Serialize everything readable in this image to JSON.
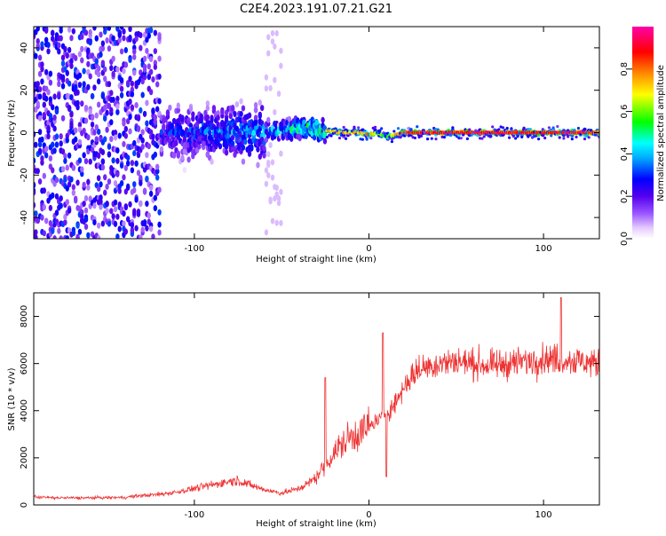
{
  "title": "C2E4.2023.191.07.21.G21",
  "chart_data": [
    {
      "type": "heatmap",
      "xlabel": "Height of straight line (km)",
      "ylabel": "Frequency (Hz)",
      "xlim": [
        -192,
        132
      ],
      "ylim": [
        -50,
        50
      ],
      "xticks": [
        -100,
        0,
        100
      ],
      "yticks": [
        -40,
        -20,
        0,
        20,
        40
      ],
      "grid": false,
      "colorbar": {
        "label": "Normalized spectral amplitude",
        "range": [
          0,
          1
        ],
        "ticks": [
          0.0,
          0.2,
          0.4,
          0.6,
          0.8
        ],
        "colors": [
          "#ffffff",
          "#e6ccff",
          "#9955ff",
          "#5500ee",
          "#0000ff",
          "#00ffff",
          "#00ff00",
          "#ffff00",
          "#ff8800",
          "#ff0000",
          "#ff00aa"
        ]
      },
      "ridge": {
        "x": [
          -192,
          -160,
          -120,
          -100,
          -80,
          -60,
          -45,
          -35,
          -25,
          -15,
          -5,
          0,
          5,
          10,
          20,
          40,
          60,
          80,
          100,
          120,
          132
        ],
        "y": [
          0,
          0,
          0,
          0,
          0,
          0.5,
          1.5,
          2.5,
          1,
          0,
          0,
          -1,
          0,
          -2,
          0,
          0,
          0,
          0,
          0,
          0,
          0
        ],
        "amplitude": [
          0.2,
          0.25,
          0.3,
          0.35,
          0.4,
          0.45,
          0.5,
          0.6,
          0.7,
          0.75,
          0.7,
          0.8,
          0.6,
          0.55,
          0.85,
          0.9,
          0.92,
          0.9,
          0.88,
          0.9,
          0.85
        ]
      }
    },
    {
      "type": "line",
      "xlabel": "Height of straight line (km)",
      "ylabel": "SNR (10 * v/v)",
      "xlim": [
        -192,
        132
      ],
      "ylim": [
        0,
        9000
      ],
      "xticks": [
        -100,
        0,
        100
      ],
      "yticks": [
        0,
        2000,
        4000,
        6000,
        8000
      ],
      "grid": false,
      "color": "#ee3333",
      "series": [
        {
          "x": [
            -192,
            -180,
            -160,
            -140,
            -130,
            -120,
            -110,
            -100,
            -90,
            -80,
            -75,
            -70,
            -60,
            -50,
            -45,
            -40,
            -35,
            -30,
            -25,
            -20,
            -15,
            -10,
            -5,
            0,
            5,
            10,
            15,
            20,
            25,
            30,
            40,
            50,
            60,
            70,
            80,
            90,
            100,
            110,
            120,
            132
          ],
          "y": [
            350,
            300,
            300,
            320,
            400,
            450,
            550,
            700,
            850,
            1000,
            1050,
            900,
            650,
            500,
            600,
            700,
            900,
            1200,
            1700,
            2200,
            2600,
            2900,
            3100,
            3300,
            3600,
            3900,
            4300,
            5000,
            5500,
            5800,
            6000,
            6100,
            6000,
            5900,
            6000,
            6100,
            6200,
            6200,
            6100,
            6000
          ]
        }
      ],
      "annotations": [
        {
          "x": 110,
          "y": 8800
        },
        {
          "x": 8,
          "y": 7300
        },
        {
          "x": 10,
          "y": 1200
        },
        {
          "x": -25,
          "y": 5400
        }
      ]
    }
  ]
}
